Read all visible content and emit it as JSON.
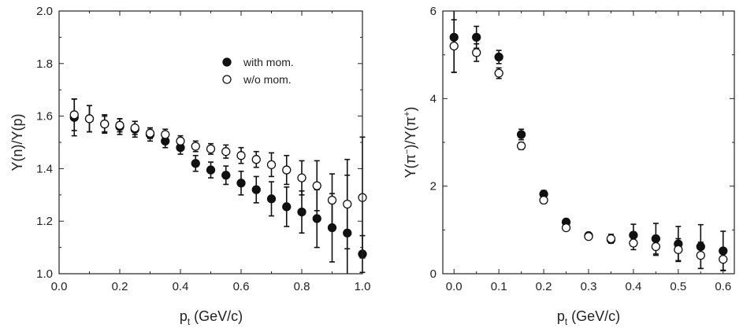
{
  "chart_data": [
    {
      "type": "scatter",
      "title": "",
      "xlabel": "p_t (GeV/c)",
      "xlabel_main": "p",
      "xlabel_sub": "t",
      "xlabel_tail": " (GeV/c)",
      "ylabel": "Y(n)/Y(p)",
      "xlim": [
        0.0,
        1.0
      ],
      "ylim": [
        1.0,
        2.0
      ],
      "xticks": [
        0.0,
        0.2,
        0.4,
        0.6,
        0.8,
        1.0
      ],
      "xtick_labels": [
        "0.0",
        "0.2",
        "0.4",
        "0.6",
        "0.8",
        "1.0"
      ],
      "yticks": [
        1.0,
        1.2,
        1.4,
        1.6,
        1.8,
        2.0
      ],
      "ytick_labels": [
        "1.0",
        "1.2",
        "1.4",
        "1.6",
        "1.8",
        "2.0"
      ],
      "legend_position": "top-right",
      "series": [
        {
          "name": "with mom.",
          "marker": "filled-circle",
          "x": [
            0.05,
            0.1,
            0.15,
            0.2,
            0.25,
            0.3,
            0.35,
            0.4,
            0.45,
            0.5,
            0.55,
            0.6,
            0.65,
            0.7,
            0.75,
            0.8,
            0.85,
            0.9,
            0.95,
            1.0
          ],
          "y": [
            1.595,
            1.59,
            1.57,
            1.56,
            1.55,
            1.53,
            1.505,
            1.48,
            1.42,
            1.395,
            1.375,
            1.345,
            1.32,
            1.285,
            1.255,
            1.235,
            1.21,
            1.175,
            1.155,
            1.075
          ],
          "err": [
            0.07,
            0.05,
            0.035,
            0.03,
            0.03,
            0.025,
            0.025,
            0.025,
            0.03,
            0.03,
            0.035,
            0.045,
            0.05,
            0.065,
            0.075,
            0.08,
            0.11,
            0.13,
            0.22,
            0.07
          ]
        },
        {
          "name": "w/o mom.",
          "marker": "open-circle",
          "x": [
            0.05,
            0.1,
            0.15,
            0.2,
            0.25,
            0.3,
            0.35,
            0.4,
            0.45,
            0.5,
            0.55,
            0.6,
            0.65,
            0.7,
            0.75,
            0.8,
            0.85,
            0.9,
            0.95,
            1.0
          ],
          "y": [
            1.605,
            1.59,
            1.57,
            1.565,
            1.555,
            1.535,
            1.53,
            1.505,
            1.485,
            1.475,
            1.465,
            1.45,
            1.435,
            1.415,
            1.395,
            1.365,
            1.335,
            1.28,
            1.265,
            1.29
          ],
          "err": [
            0.06,
            0.05,
            0.03,
            0.025,
            0.025,
            0.02,
            0.02,
            0.02,
            0.02,
            0.02,
            0.025,
            0.03,
            0.03,
            0.045,
            0.055,
            0.065,
            0.095,
            0.1,
            0.17,
            0.23
          ]
        }
      ]
    },
    {
      "type": "scatter",
      "title": "",
      "xlabel": "p_t (GeV/c)",
      "xlabel_main": "p",
      "xlabel_sub": "t",
      "xlabel_tail": " (GeV/c)",
      "ylabel": "Y(π⁻)/Y(π⁺)",
      "ylabel_parts": [
        "Y(π",
        "−",
        ")/Y(π",
        "+",
        ")"
      ],
      "xlim": [
        -0.025,
        0.625
      ],
      "ylim": [
        0,
        6
      ],
      "xticks": [
        0.0,
        0.1,
        0.2,
        0.3,
        0.4,
        0.5,
        0.6
      ],
      "xtick_labels": [
        "0.0",
        "0.1",
        "0.2",
        "0.3",
        "0.4",
        "0.5",
        "0.6"
      ],
      "yticks": [
        0,
        2,
        4,
        6
      ],
      "ytick_labels": [
        "0",
        "2",
        "4",
        "6"
      ],
      "series": [
        {
          "name": "with mom.",
          "marker": "filled-circle",
          "x": [
            0.0,
            0.05,
            0.1,
            0.15,
            0.2,
            0.25,
            0.3,
            0.35,
            0.4,
            0.45,
            0.5,
            0.55,
            0.6
          ],
          "y": [
            5.4,
            5.4,
            4.95,
            3.18,
            1.82,
            1.18,
            0.87,
            0.78,
            0.88,
            0.8,
            0.68,
            0.62,
            0.52
          ],
          "err": [
            0.8,
            0.25,
            0.15,
            0.12,
            0.08,
            0.06,
            0.06,
            0.08,
            0.25,
            0.35,
            0.4,
            0.5,
            0.45
          ]
        },
        {
          "name": "w/o mom.",
          "marker": "open-circle",
          "x": [
            0.0,
            0.05,
            0.1,
            0.15,
            0.2,
            0.25,
            0.3,
            0.35,
            0.4,
            0.45,
            0.5,
            0.55,
            0.6
          ],
          "y": [
            5.2,
            5.05,
            4.58,
            2.92,
            1.68,
            1.05,
            0.85,
            0.8,
            0.7,
            0.62,
            0.55,
            0.42,
            0.33
          ],
          "err": [
            0.6,
            0.2,
            0.12,
            0.08,
            0.07,
            0.06,
            0.06,
            0.1,
            0.15,
            0.2,
            0.25,
            0.3,
            0.25
          ]
        }
      ]
    }
  ]
}
